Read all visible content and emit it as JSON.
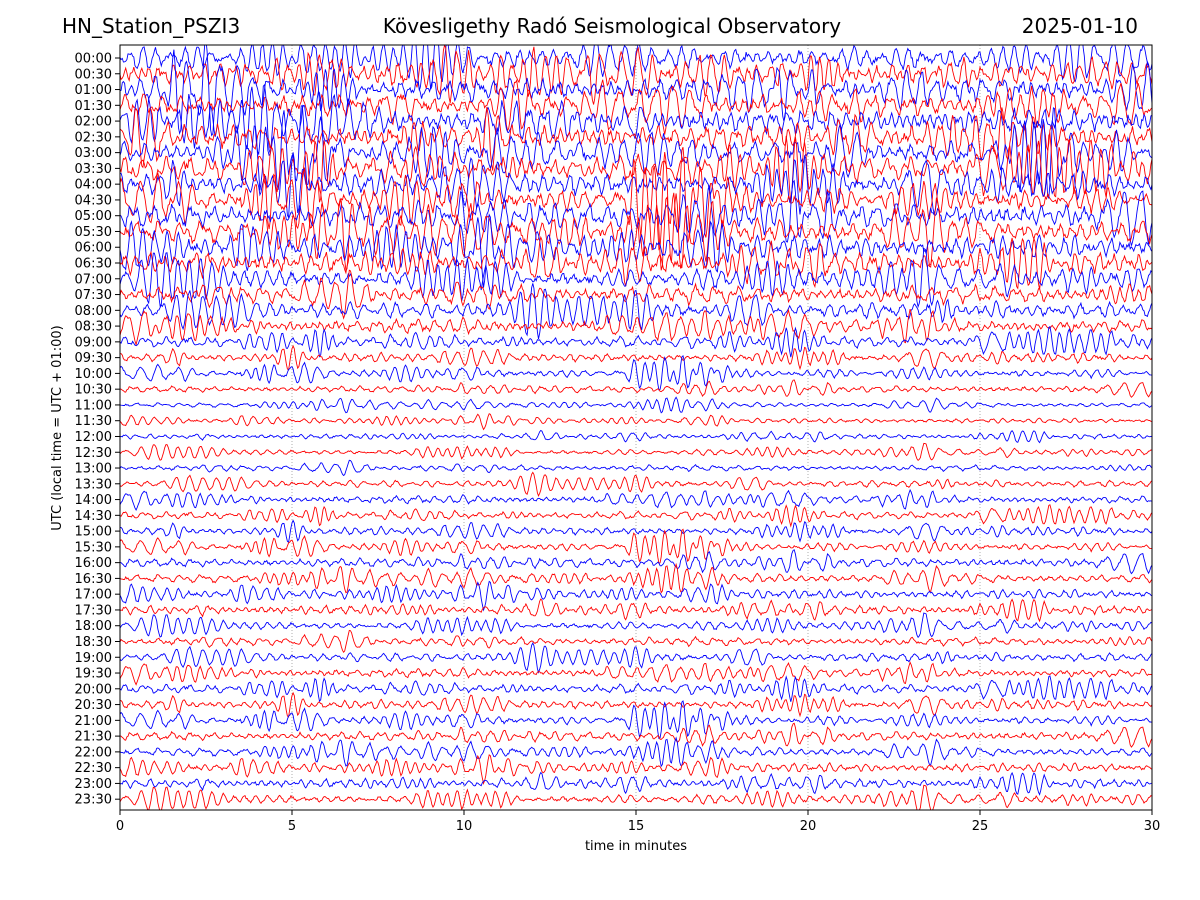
{
  "header": {
    "station": "HN_Station_PSZI3",
    "observatory": "Kövesligethy Radó Seismological Observatory",
    "date": "2025-01-10"
  },
  "colors": {
    "trace_a": "#0000ff",
    "trace_b": "#ff0000",
    "grid": "#999999",
    "axes": "#000000"
  },
  "chart_data": {
    "type": "line",
    "title": "Kövesligethy Radó Seismological Observatory",
    "xlabel": "time in minutes",
    "ylabel": "UTC (local time = UTC + 01:00)",
    "xlim": [
      0,
      30
    ],
    "x_ticks": [
      0,
      5,
      10,
      15,
      20,
      25,
      30
    ],
    "vertical_gridlines_dotted": true,
    "rows": [
      "00:00",
      "00:30",
      "01:00",
      "01:30",
      "02:00",
      "02:30",
      "03:00",
      "03:30",
      "04:00",
      "04:30",
      "05:00",
      "05:30",
      "06:00",
      "06:30",
      "07:00",
      "07:30",
      "08:00",
      "08:30",
      "09:00",
      "09:30",
      "10:00",
      "10:30",
      "11:00",
      "11:30",
      "12:00",
      "12:30",
      "13:00",
      "13:30",
      "14:00",
      "14:30",
      "15:00",
      "15:30",
      "16:00",
      "16:30",
      "17:00",
      "17:30",
      "18:00",
      "18:30",
      "19:00",
      "19:30",
      "20:00",
      "20:30",
      "21:00",
      "21:30",
      "22:00",
      "22:30",
      "23:00",
      "23:30"
    ],
    "row_colors_alternate": [
      "blue",
      "red"
    ],
    "relative_amplitude_by_row": [
      2.8,
      2.8,
      2.9,
      3.0,
      3.0,
      3.0,
      3.0,
      3.0,
      3.0,
      3.0,
      3.0,
      3.0,
      2.8,
      2.6,
      2.4,
      2.2,
      1.9,
      1.6,
      1.3,
      1.1,
      1.0,
      0.8,
      0.6,
      0.6,
      0.6,
      0.7,
      0.7,
      0.8,
      0.9,
      0.9,
      1.0,
      1.0,
      1.1,
      1.1,
      1.1,
      1.1,
      1.0,
      1.0,
      1.0,
      1.0,
      1.1,
      1.1,
      1.1,
      1.1,
      1.1,
      1.1,
      1.1,
      1.1
    ]
  }
}
